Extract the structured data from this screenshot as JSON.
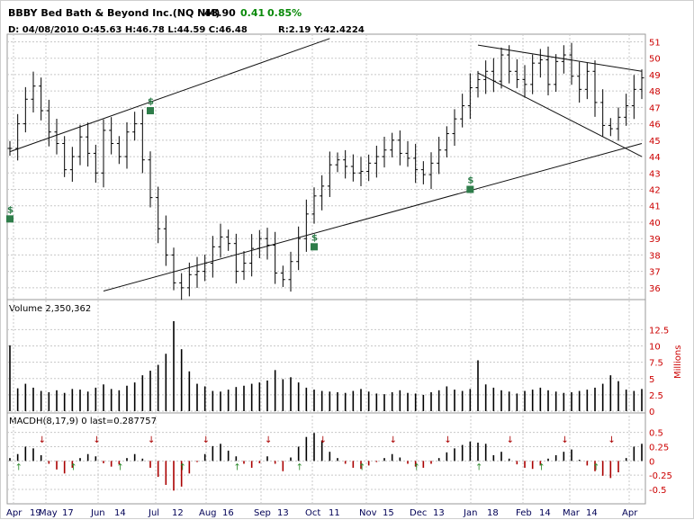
{
  "header": {
    "title": "BBBY Bed Bath & Beyond Inc.(NQ NM)",
    "last": "48.90",
    "change": "0.41",
    "change_pct": "0.85%",
    "ohlc": "D: 04/08/2010 O:45.63 H:46.78 L:44.59 C:46.48",
    "ry": "R:2.19 Y:42.4224"
  },
  "colors": {
    "price_bars": "#000000",
    "volume_bars": "#000000",
    "macd_positive": "#000000",
    "macd_negative": "#aa0000",
    "axis_tick_text": "#cc0000",
    "month_labels": "#000055",
    "marker_green": "#2e7d4a",
    "arrow_down": "#aa0000",
    "arrow_up": "#2e8b2e",
    "gridline": "#c8c8c8"
  },
  "chart_data": [
    {
      "type": "ohlc",
      "panel": "price",
      "x_labels": [
        {
          "month": "Apr",
          "day": "19"
        },
        {
          "month": "May",
          "day": "17"
        },
        {
          "month": "Jun",
          "day": "14"
        },
        {
          "month": "Jul",
          "day": "12"
        },
        {
          "month": "Aug",
          "day": "16"
        },
        {
          "month": "Sep",
          "day": "13"
        },
        {
          "month": "Oct",
          "day": "11"
        },
        {
          "month": "Nov",
          "day": "15"
        },
        {
          "month": "Dec",
          "day": "13"
        },
        {
          "month": "Jan",
          "day": "18"
        },
        {
          "month": "Feb",
          "day": "14"
        },
        {
          "month": "Mar",
          "day": "14"
        },
        {
          "month": "Apr",
          "day": ""
        }
      ],
      "y_ticks": [
        36,
        37,
        38,
        39,
        40,
        41,
        42,
        43,
        44,
        45,
        46,
        47,
        48,
        49,
        50,
        51
      ],
      "ylim": [
        35.5,
        51.3
      ],
      "approx_close": [
        44.5,
        46.0,
        47.5,
        48.3,
        46.8,
        45.5,
        44.8,
        43.2,
        44.0,
        45.2,
        44.2,
        43.0,
        45.6,
        44.8,
        44.0,
        45.5,
        46.0,
        43.8,
        41.5,
        39.6,
        38.0,
        36.3,
        36.0,
        36.8,
        37.0,
        37.5,
        38.5,
        39.1,
        38.7,
        37.0,
        37.5,
        38.4,
        39.0,
        38.6,
        36.9,
        36.5,
        37.6,
        39.0,
        40.5,
        41.6,
        42.2,
        43.5,
        43.8,
        43.4,
        43.0,
        43.1,
        43.6,
        44.0,
        44.4,
        45.0,
        44.2,
        43.9,
        43.2,
        42.9,
        43.6,
        44.4,
        45.4,
        46.3,
        47.1,
        48.2,
        48.7,
        49.2,
        48.6,
        50.2,
        49.2,
        48.7,
        48.4,
        49.7,
        49.9,
        48.4,
        49.8,
        50.2,
        48.9,
        48.1,
        49.2,
        47.3,
        45.9,
        45.7,
        46.4,
        47.1,
        48.1,
        48.8
      ],
      "trendlines": "upper channel Apr-Oct, lower support Jul-Apr, wedge Jan-Mar",
      "markers": "green dollar/pay-date symbols"
    },
    {
      "type": "bar",
      "panel": "volume",
      "label": "Volume 2,350,362",
      "units": "Millions",
      "y_ticks": [
        "0",
        "2.5",
        "5",
        "7.5",
        "10",
        "12.5"
      ],
      "ylim": [
        0,
        13.8
      ],
      "approx_values": [
        10.1,
        3.5,
        4.2,
        3.6,
        3.1,
        2.9,
        3.2,
        2.8,
        3.4,
        3.3,
        3.0,
        3.6,
        4.1,
        3.4,
        3.2,
        3.9,
        4.4,
        5.5,
        6.2,
        7.1,
        8.8,
        13.8,
        9.5,
        6.1,
        4.2,
        3.8,
        3.1,
        3.0,
        3.3,
        3.7,
        3.9,
        4.2,
        4.4,
        4.7,
        6.3,
        4.9,
        5.2,
        4.4,
        3.6,
        3.3,
        3.1,
        3.0,
        2.9,
        2.8,
        3.1,
        3.4,
        3.0,
        2.7,
        2.6,
        2.9,
        3.2,
        2.8,
        2.7,
        2.5,
        2.9,
        3.2,
        3.8,
        3.3,
        3.1,
        3.4,
        7.8,
        4.1,
        3.6,
        3.2,
        3.0,
        2.7,
        3.1,
        3.3,
        3.6,
        3.2,
        3.0,
        2.8,
        2.9,
        3.1,
        3.3,
        3.6,
        4.2,
        5.5,
        4.6,
        3.3,
        3.1,
        3.4
      ]
    },
    {
      "type": "bar",
      "panel": "macd_histogram",
      "label": "MACDH(8,17,9) 0 last=0.287757",
      "y_ticks": [
        "0.5",
        "0.25",
        "0",
        "-0.25",
        "-0.5"
      ],
      "ylim": [
        -0.72,
        0.62
      ],
      "approx_values": [
        0.05,
        0.12,
        0.25,
        0.22,
        0.1,
        -0.05,
        -0.15,
        -0.22,
        -0.12,
        0.05,
        0.12,
        0.08,
        -0.04,
        -0.1,
        -0.06,
        0.05,
        0.12,
        0.04,
        -0.12,
        -0.28,
        -0.42,
        -0.52,
        -0.45,
        -0.22,
        -0.02,
        0.12,
        0.26,
        0.3,
        0.18,
        0.08,
        -0.05,
        -0.12,
        -0.04,
        0.08,
        -0.05,
        -0.18,
        0.06,
        0.25,
        0.42,
        0.49,
        0.36,
        0.16,
        0.05,
        -0.05,
        -0.12,
        -0.14,
        -0.08,
        -0.02,
        0.05,
        0.12,
        0.06,
        -0.05,
        -0.1,
        -0.12,
        -0.05,
        0.05,
        0.15,
        0.22,
        0.28,
        0.34,
        0.32,
        0.3,
        0.1,
        0.16,
        0.04,
        -0.06,
        -0.12,
        -0.14,
        -0.08,
        0.04,
        0.1,
        0.16,
        0.2,
        0.02,
        -0.08,
        -0.18,
        -0.26,
        -0.3,
        -0.2,
        0.05,
        0.25,
        0.3
      ]
    }
  ]
}
